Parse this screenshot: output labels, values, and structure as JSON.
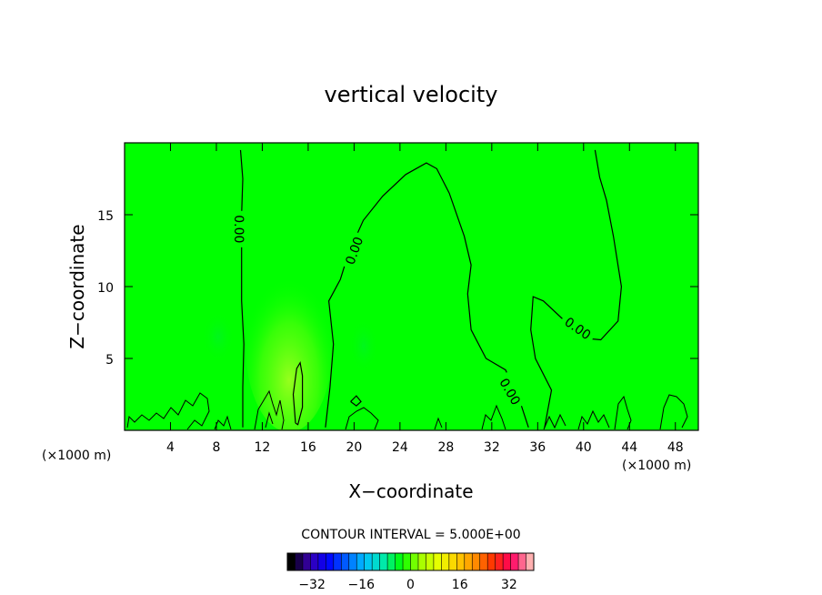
{
  "chart_data": {
    "type": "contour",
    "title": "vertical velocity",
    "xlabel": "X−coordinate",
    "ylabel": "Z−coordinate",
    "x_unit": "(×1000 m)",
    "x_unit_left": "(×1000 m)",
    "xlim": [
      0,
      50
    ],
    "ylim": [
      0,
      20
    ],
    "x_ticks": [
      4,
      8,
      12,
      16,
      20,
      24,
      28,
      32,
      36,
      40,
      44,
      48
    ],
    "y_ticks": [
      5,
      10,
      15
    ],
    "x_tick_labels": [
      "4",
      "8",
      "12",
      "16",
      "20",
      "24",
      "28",
      "32",
      "36",
      "40",
      "44",
      "48"
    ],
    "y_tick_labels": [
      "5",
      "10",
      "15"
    ],
    "background_color": "#00ff00",
    "contour_label": "0.00",
    "contour_labels": [
      {
        "text": "0.00",
        "x": 10.0,
        "y": 14.0,
        "angle": 90
      },
      {
        "text": "0.00",
        "x": 20.0,
        "y": 12.5,
        "angle": -70
      },
      {
        "text": "0.00",
        "x": 33.6,
        "y": 2.7,
        "angle": 60
      },
      {
        "text": "0.00",
        "x": 39.5,
        "y": 7.1,
        "angle": 35
      }
    ],
    "contours": [
      [
        [
          10.3,
          0.2
        ],
        [
          10.3,
          3
        ],
        [
          10.4,
          6
        ],
        [
          10.2,
          9
        ],
        [
          10.2,
          12
        ],
        [
          10.2,
          15
        ],
        [
          10.3,
          17.5
        ],
        [
          10.1,
          19.5
        ]
      ],
      [
        [
          17.5,
          0.2
        ],
        [
          17.9,
          3
        ],
        [
          18.2,
          6
        ],
        [
          17.8,
          9
        ],
        [
          18.8,
          10.5
        ],
        [
          19.5,
          12.3
        ],
        [
          20.8,
          14.6
        ],
        [
          22.5,
          16.3
        ],
        [
          24.5,
          17.8
        ],
        [
          26.3,
          18.6
        ],
        [
          27.2,
          18.2
        ],
        [
          28.3,
          16.5
        ],
        [
          29.6,
          13.5
        ],
        [
          30.2,
          11.5
        ],
        [
          29.9,
          9.5
        ],
        [
          30.2,
          7
        ],
        [
          31.5,
          5
        ],
        [
          33.2,
          4.2
        ],
        [
          34.5,
          1.9
        ],
        [
          35.2,
          0.2
        ]
      ],
      [
        [
          36.6,
          0.2
        ],
        [
          37.2,
          2.8
        ],
        [
          35.8,
          5
        ],
        [
          35.4,
          7
        ],
        [
          35.6,
          9.3
        ],
        [
          36.5,
          9.0
        ],
        [
          38.5,
          7.5
        ],
        [
          40.2,
          6.4
        ],
        [
          41.5,
          6.3
        ],
        [
          43.0,
          7.6
        ],
        [
          43.3,
          10
        ],
        [
          42.6,
          13.5
        ],
        [
          42.0,
          16
        ],
        [
          41.4,
          17.6
        ],
        [
          41.0,
          19.5
        ]
      ],
      [
        [
          14.9,
          0.5
        ],
        [
          14.7,
          2.5
        ],
        [
          15.0,
          4.3
        ],
        [
          15.3,
          4.7
        ],
        [
          15.5,
          3.8
        ],
        [
          15.5,
          1.6
        ],
        [
          15.1,
          0.4
        ],
        [
          14.9,
          0.5
        ]
      ],
      [
        [
          19.7,
          2.0
        ],
        [
          20.2,
          2.4
        ],
        [
          20.6,
          2.0
        ],
        [
          20.2,
          1.7
        ],
        [
          19.7,
          2.0
        ]
      ]
    ],
    "colorbar": {
      "label": "CONTOUR INTERVAL = 5.000E+00",
      "ticks": [
        -32,
        -16,
        0,
        16,
        32
      ],
      "tick_labels": [
        "−32",
        "−16",
        "0",
        "16",
        "32"
      ],
      "range": [
        -40,
        40
      ],
      "n_bins": 32,
      "colormap": [
        "#000000",
        "#3a00b0",
        "#0000ff",
        "#0060ff",
        "#00c0ff",
        "#00e8b0",
        "#00ff00",
        "#a0ff00",
        "#e8ff00",
        "#ffd000",
        "#ff9000",
        "#ff3000",
        "#ff0060",
        "#ffb0b0"
      ]
    }
  }
}
